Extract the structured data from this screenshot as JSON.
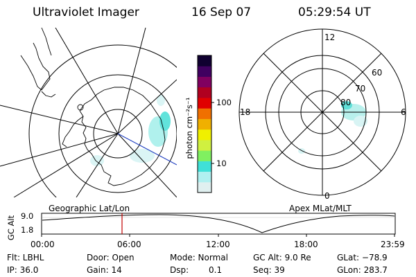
{
  "header": {
    "title": "Ultraviolet Imager",
    "date": "16 Sep 07",
    "time": "05:29:54 UT"
  },
  "colorbar": {
    "unit_label": "photon cm⁻²s⁻¹",
    "ticks": [
      "100",
      "10"
    ],
    "colors": [
      "#e0f0f0",
      "#b0f0f0",
      "#40e0d8",
      "#80f060",
      "#d0f040",
      "#f0f000",
      "#f0b000",
      "#f07000",
      "#e00000",
      "#b00020",
      "#800060",
      "#400060",
      "#100030"
    ]
  },
  "left_map": {
    "caption": "Geographic Lat/Lon"
  },
  "right_map": {
    "caption": "Apex MLat/MLT",
    "mlt_labels": {
      "top": "12",
      "left": "18",
      "right": "6",
      "bottom": "0"
    },
    "lat_labels": [
      "60",
      "70",
      "80"
    ]
  },
  "altitude_plot": {
    "ylabel": "GC Alt",
    "yticks": [
      "9.0",
      "1.8"
    ],
    "xticks": [
      "00:00",
      "06:00",
      "12:00",
      "18:00",
      "23:59"
    ]
  },
  "info": {
    "filter": "Flt: LBHL",
    "ip": "IP: 36.0",
    "door": "Door: Open",
    "gain": "Gain: 14",
    "mode": "Mode: Normal",
    "dsp_label": "Dsp:",
    "dsp_value": "0.1",
    "gc_alt": "GC Alt: 9.0 Re",
    "seq": "Seq: 39",
    "glat": "GLat: −78.9",
    "glon": "GLon: 283.7"
  }
}
